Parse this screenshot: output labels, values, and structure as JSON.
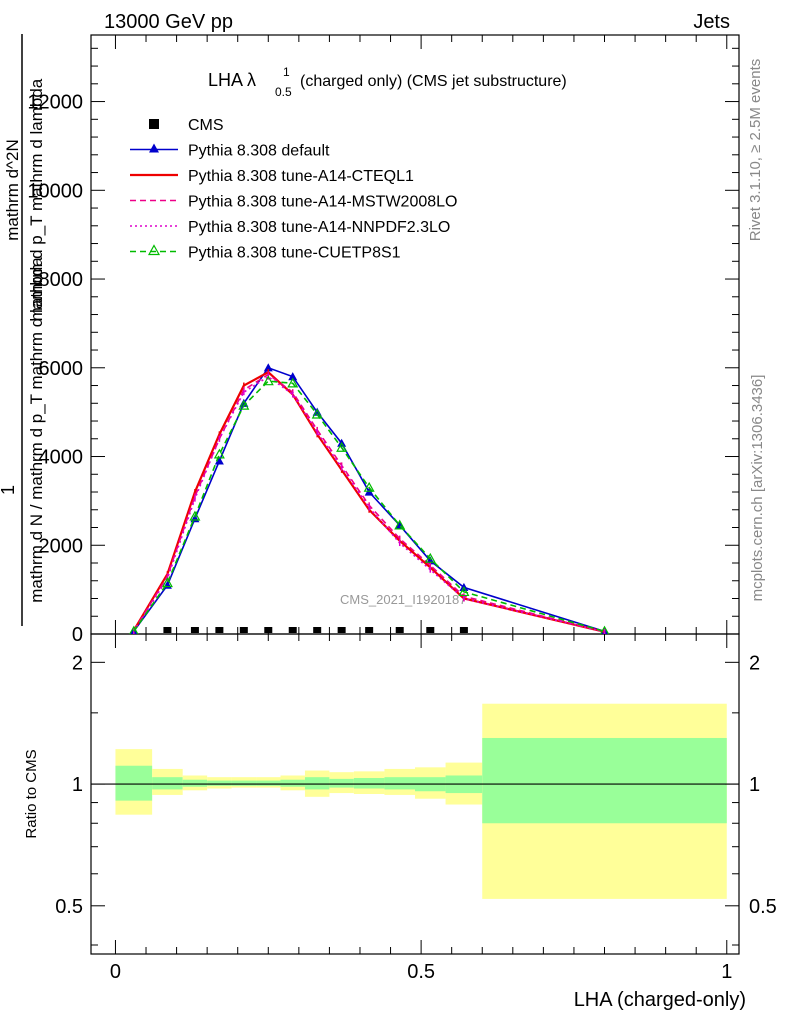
{
  "header": {
    "energy_label": "13000 GeV pp",
    "process_label": "Jets"
  },
  "side_labels": {
    "rivet_version": "Rivet 3.1.10, ≥ 2.5M events",
    "source": "mcplots.cern.ch [arXiv:1306.3436]"
  },
  "main_plot": {
    "title_prefix": "LHA λ",
    "title_sup": "1",
    "title_sub": "0.5",
    "title_suffix": "(charged only) (CMS jet substructure)",
    "watermark": "CMS_2021_I1920187",
    "ylabel_fraction_numerator": "1",
    "ylabel_denominator": "mathrm d N / mathrm d p_T mathrm d lambda",
    "ylabel_numerator": "mathrm d^2N",
    "ylabel_numerator_sub": "mathrm d p_T mathrm d lambda"
  },
  "ratio_plot": {
    "ylabel": "Ratio to CMS",
    "xlabel": "LHA (charged-only)"
  },
  "colors": {
    "default": "#0000cc",
    "cteql1": "#ee0000",
    "mstw": "#ee0088",
    "nnpdf": "#dd00cc",
    "cuetp8s1": "#00bb00",
    "band_inner": "#99ff99",
    "band_outer": "#ffff99"
  },
  "chart_data": [
    {
      "type": "line",
      "xlim": [
        -0.04,
        1.02
      ],
      "ylim": [
        0,
        13500
      ],
      "yticks": [
        0,
        2000,
        4000,
        6000,
        8000,
        10000,
        12000
      ],
      "ytick_labels": [
        "0",
        "2000",
        "4000",
        "6000",
        "8000",
        "10000",
        "12000"
      ],
      "legend_placement": "top-left",
      "legend": [
        "CMS",
        "Pythia 8.308 default",
        "Pythia 8.308 tune-A14-CTEQL1",
        "Pythia 8.308 tune-A14-MSTW2008LO",
        "Pythia 8.308 tune-A14-NNPDF2.3LO",
        "Pythia 8.308 tune-CUETP8S1"
      ],
      "cms_points": {
        "x": [
          0.085,
          0.13,
          0.17,
          0.21,
          0.25,
          0.29,
          0.33,
          0.37,
          0.415,
          0.465,
          0.515,
          0.57
        ],
        "y": [
          0,
          0,
          0,
          0,
          0,
          0,
          0,
          0,
          0,
          0,
          0,
          0
        ]
      },
      "x": [
        0.03,
        0.085,
        0.13,
        0.17,
        0.21,
        0.25,
        0.29,
        0.33,
        0.37,
        0.415,
        0.465,
        0.515,
        0.57,
        0.8
      ],
      "series": [
        {
          "name": "Pythia 8.308 default",
          "style": "solid",
          "marker": "triangle-filled",
          "color_key": "default",
          "values": [
            60,
            1100,
            2600,
            3900,
            5200,
            6000,
            5800,
            5000,
            4300,
            3200,
            2450,
            1650,
            1050,
            60
          ]
        },
        {
          "name": "Pythia 8.308 tune-A14-CTEQL1",
          "style": "solid",
          "marker": "none",
          "color_key": "cteql1",
          "values": [
            80,
            1350,
            3200,
            4500,
            5600,
            5900,
            5400,
            4500,
            3700,
            2800,
            2100,
            1500,
            800,
            50
          ]
        },
        {
          "name": "Pythia 8.308 tune-A14-MSTW2008LO",
          "style": "dashed",
          "marker": "none",
          "color_key": "mstw",
          "values": [
            70,
            1300,
            3100,
            4400,
            5500,
            5850,
            5450,
            4600,
            3800,
            2900,
            2150,
            1550,
            850,
            50
          ]
        },
        {
          "name": "Pythia 8.308 tune-A14-NNPDF2.3LO",
          "style": "dotted",
          "marker": "none",
          "color_key": "nnpdf",
          "values": [
            70,
            1250,
            3050,
            4400,
            5450,
            5800,
            5400,
            4550,
            3750,
            2850,
            2050,
            1450,
            800,
            50
          ]
        },
        {
          "name": "Pythia 8.308 tune-CUETP8S1",
          "style": "dashed",
          "marker": "triangle-open",
          "color_key": "cuetp8s1",
          "values": [
            60,
            1150,
            2650,
            4050,
            5150,
            5700,
            5650,
            4950,
            4200,
            3300,
            2450,
            1700,
            950,
            60
          ]
        }
      ]
    },
    {
      "type": "area",
      "ylabel": "Ratio to CMS",
      "xlabel": "LHA (charged-only)",
      "xlim": [
        -0.04,
        1.02
      ],
      "ylim": [
        0.38,
        2.35
      ],
      "yscale": "log",
      "yticks": [
        0.5,
        1,
        2
      ],
      "ytick_labels": [
        "0.5",
        "1",
        "2"
      ],
      "xticks": [
        0,
        0.5,
        1
      ],
      "xtick_labels": [
        "0",
        "0.5",
        "1"
      ],
      "reference_line": 1,
      "bins": [
        {
          "x0": 0.0,
          "x1": 0.06,
          "inner": [
            0.91,
            1.11
          ],
          "outer": [
            0.84,
            1.22
          ]
        },
        {
          "x0": 0.06,
          "x1": 0.11,
          "inner": [
            0.97,
            1.04
          ],
          "outer": [
            0.94,
            1.09
          ]
        },
        {
          "x0": 0.11,
          "x1": 0.15,
          "inner": [
            0.985,
            1.025
          ],
          "outer": [
            0.965,
            1.05
          ]
        },
        {
          "x0": 0.15,
          "x1": 0.19,
          "inner": [
            0.99,
            1.02
          ],
          "outer": [
            0.975,
            1.04
          ]
        },
        {
          "x0": 0.19,
          "x1": 0.23,
          "inner": [
            0.99,
            1.02
          ],
          "outer": [
            0.98,
            1.04
          ]
        },
        {
          "x0": 0.23,
          "x1": 0.27,
          "inner": [
            0.99,
            1.02
          ],
          "outer": [
            0.98,
            1.04
          ]
        },
        {
          "x0": 0.27,
          "x1": 0.31,
          "inner": [
            0.985,
            1.025
          ],
          "outer": [
            0.965,
            1.05
          ]
        },
        {
          "x0": 0.31,
          "x1": 0.35,
          "inner": [
            0.97,
            1.04
          ],
          "outer": [
            0.93,
            1.08
          ]
        },
        {
          "x0": 0.35,
          "x1": 0.39,
          "inner": [
            0.98,
            1.03
          ],
          "outer": [
            0.95,
            1.07
          ]
        },
        {
          "x0": 0.39,
          "x1": 0.44,
          "inner": [
            0.975,
            1.035
          ],
          "outer": [
            0.945,
            1.075
          ]
        },
        {
          "x0": 0.44,
          "x1": 0.49,
          "inner": [
            0.97,
            1.04
          ],
          "outer": [
            0.94,
            1.09
          ]
        },
        {
          "x0": 0.49,
          "x1": 0.54,
          "inner": [
            0.96,
            1.04
          ],
          "outer": [
            0.92,
            1.1
          ]
        },
        {
          "x0": 0.54,
          "x1": 0.6,
          "inner": [
            0.95,
            1.05
          ],
          "outer": [
            0.89,
            1.13
          ]
        },
        {
          "x0": 0.6,
          "x1": 1.0,
          "inner": [
            0.8,
            1.3
          ],
          "outer": [
            0.52,
            1.58
          ]
        }
      ]
    }
  ]
}
